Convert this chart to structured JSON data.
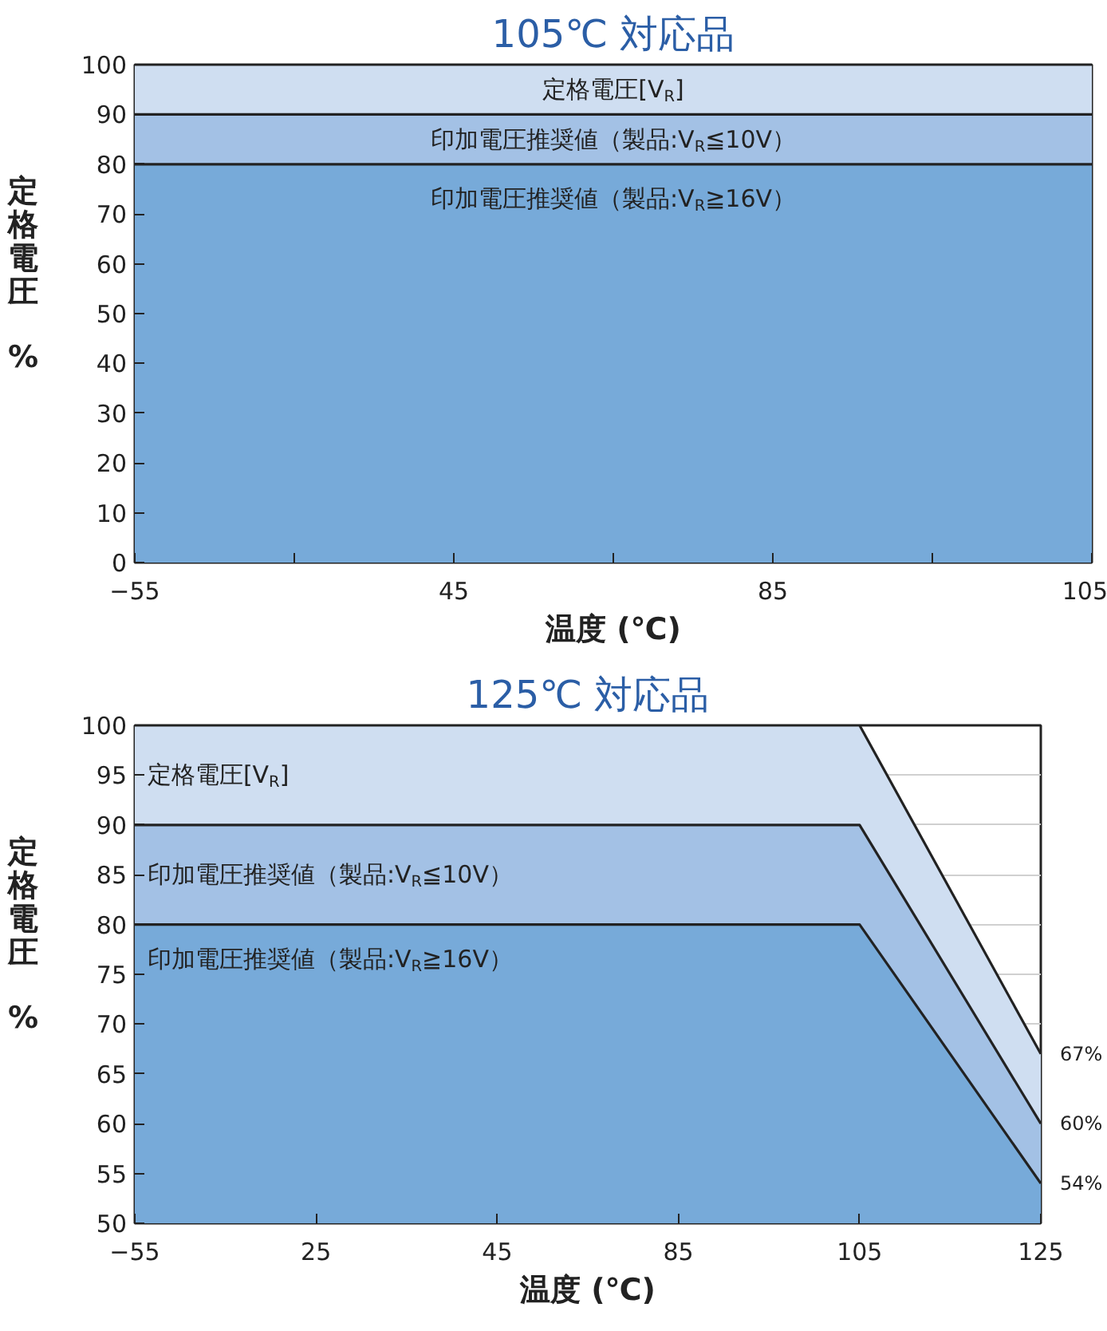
{
  "chart_data": [
    {
      "type": "area",
      "title": "105℃ 対応品",
      "xlabel": "温度 (℃)",
      "ylabel": "定格電圧 %",
      "categories": [
        "−55",
        null,
        "45",
        null,
        "85",
        null,
        "105"
      ],
      "ylim": [
        0,
        100
      ],
      "yticks": [
        0,
        10,
        20,
        30,
        40,
        50,
        60,
        70,
        80,
        90,
        100
      ],
      "grid": false,
      "series": [
        {
          "name": "定格電圧[V$_{R}$]",
          "color": "#cfdef1",
          "values": [
            100,
            100,
            100,
            100,
            100,
            100,
            100
          ]
        },
        {
          "name": "印加電圧推奨値（製品:V$_{R}$≦10V）",
          "color": "#a3c1e5",
          "values": [
            90,
            90,
            90,
            90,
            90,
            90,
            90
          ]
        },
        {
          "name": "印加電圧推奨値（製品:V$_{R}$≧16V）",
          "color": "#77aad9",
          "values": [
            80,
            80,
            80,
            80,
            80,
            80,
            80
          ]
        }
      ]
    },
    {
      "type": "area",
      "title": "125℃ 対応品",
      "xlabel": "温度 (℃)",
      "ylabel": "定格電圧 %",
      "categories": [
        "−55",
        "25",
        "45",
        "85",
        "105",
        "125"
      ],
      "ylim": [
        50,
        100
      ],
      "yticks": [
        50,
        55,
        60,
        65,
        70,
        75,
        80,
        85,
        90,
        95,
        100
      ],
      "grid": "y",
      "series": [
        {
          "name": "定格電圧[V$_{R}$]",
          "color": "#cfdef1",
          "values": [
            100,
            100,
            100,
            100,
            100,
            67
          ],
          "value_labels": [
            null,
            null,
            null,
            null,
            null,
            "67%"
          ]
        },
        {
          "name": "印加電圧推奨値（製品:V$_{R}$≦10V）",
          "color": "#a3c1e5",
          "values": [
            90,
            90,
            90,
            90,
            90,
            60
          ],
          "value_labels": [
            null,
            null,
            null,
            null,
            null,
            "60%"
          ]
        },
        {
          "name": "印加電圧推奨値（製品:V$_{R}$≧16V）",
          "color": "#77aad9",
          "values": [
            80,
            80,
            80,
            80,
            80,
            54
          ],
          "value_labels": [
            null,
            null,
            null,
            null,
            null,
            "54%"
          ]
        }
      ]
    }
  ]
}
